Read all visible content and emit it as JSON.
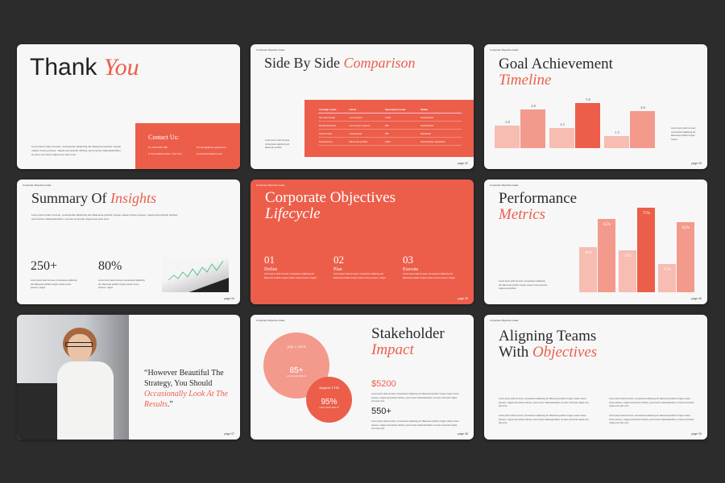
{
  "header": "Corporate Objective Goals",
  "colors": {
    "accent": "#ec5e4a",
    "light": "#f7bcb2",
    "mid": "#f39a8c",
    "background": "#2c2c2c"
  },
  "lorem": "Lorem ipsum dolor sit amet, consectetuer adipiscing elit. Maecenas porttitor congue massa. Fusce posuere, magna sed pulvinar ultricies, purus lectus malesuada libero, sit amet commodo magna eros quis urna.",
  "s1": {
    "title": "Thank",
    "title_accent": "You",
    "contact_title": "Contact Us:",
    "phone": "+0123 456 789",
    "address": "Your Address Here, Your City",
    "email": "lorem@ipsum.gmail.com",
    "web": "www.loremipsum.com",
    "page": "page 01"
  },
  "s2": {
    "title": "Side By Side",
    "title_accent": "Comparison",
    "side_text": "Lorem ipsum dolor sit amet, consectetuer adipiscing elit. Maecenas porttitor",
    "headers": [
      "Strategic Goals",
      "Detail",
      "Operational Goals",
      "Media"
    ],
    "rows": [
      [
        "Set Clear Goals",
        "Lorem Ipsum",
        "1,200",
        "Social Media"
      ],
      [
        "Market Research",
        "Lorem ipsum dolorsit",
        "350",
        "Social Media"
      ],
      [
        "Improvement",
        "consectetuer",
        "450",
        "Newsletter"
      ],
      [
        "Development",
        "Maecenas porttitor",
        "2,900",
        "Social Media, Newsletter"
      ]
    ],
    "page": "page 02"
  },
  "s3": {
    "title": "Goal Achievement",
    "title_accent": "Timeline",
    "side_text": "Lorem ipsum dolor sit amet, consectetuer adipiscing elit. Maecenas porttitor congue massa.",
    "page": "page 03"
  },
  "s4": {
    "title": "Summary Of",
    "title_accent": "Insights",
    "stat1": "250+",
    "stat2": "80%",
    "stat_text": "Lorem ipsum dolor sit amet, consectetuer adipiscing elit. Maecenas porttitor congue massa. Fusce posuere, magna",
    "page": "page 04"
  },
  "s5": {
    "title": "Corporate Objectives",
    "title_accent": "Lifecycle",
    "steps": [
      {
        "num": "01",
        "label": "Define"
      },
      {
        "num": "02",
        "label": "Plan"
      },
      {
        "num": "03",
        "label": "Execute"
      }
    ],
    "step_text": "Lorem ipsum dolor sit amet, consectetuer adipiscing elit. Maecenas porttitor congue massa. Fusce posuere, magna",
    "page": "page 05"
  },
  "s6": {
    "title": "Performance",
    "title_accent": "Metrics",
    "side_text": "Lorem ipsum dolor sit amet, consectetuer adipiscing elit. Maecenas porttitor congue massa. Fusce posuere, magna sed pulvinar",
    "page": "page 06"
  },
  "s7": {
    "quote_1": "“However Beautiful The Strategy, You Should",
    "quote_accent": "Occasionally Look At The Results",
    "quote_end": ".”",
    "page": "page 07"
  },
  "s8": {
    "title": "Stakeholder",
    "title_accent": "Impact",
    "c1_label": "July 2 2018",
    "c1_value": "85+",
    "c2_label": "August 11th",
    "c2_value": "95%",
    "circle_caption": "Lorem ipsum dolor sit",
    "stat1": "$5200",
    "stat2": "550+",
    "page": "page 08"
  },
  "s9": {
    "title_1": "Aligning Teams",
    "title_2": "With",
    "title_accent": "Objectives",
    "page": "page 09"
  },
  "chart_data": [
    {
      "type": "bar",
      "series": [
        {
          "values": [
            2.8,
            2.5,
            1.5
          ]
        },
        {
          "values": [
            4.8,
            5.6,
            4.6
          ]
        }
      ],
      "data_labels": [
        "2.8",
        "4.8",
        "2.5",
        "5.6",
        "1.5",
        "4.6"
      ]
    },
    {
      "type": "bar",
      "series": [
        {
          "values": [
            40,
            37,
            25
          ]
        },
        {
          "values": [
            65,
            75,
            62
          ]
        }
      ],
      "data_labels": [
        "40%",
        "65%",
        "37%",
        "75%",
        "25%",
        "62%"
      ]
    }
  ]
}
